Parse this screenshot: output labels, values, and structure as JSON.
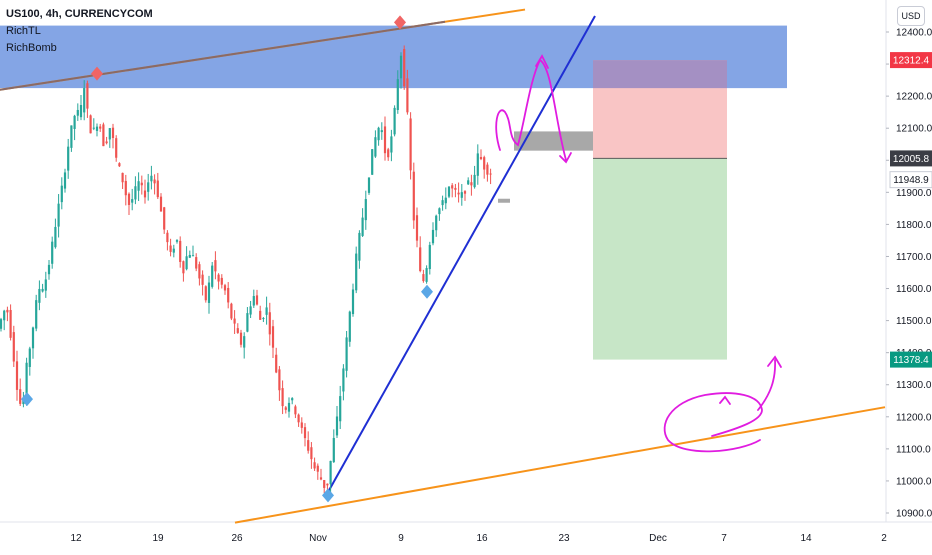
{
  "header": {
    "symbol": "US100, 4h, CURRENCYCOM",
    "indicators": [
      "RichTL",
      "RichBomb"
    ],
    "currency_button": "USD"
  },
  "price_badges": {
    "target_high": "12312.4",
    "current": "12005.8",
    "last": "11948.9",
    "target_low": "11378.4"
  },
  "colors": {
    "up_candle": "#26a69a",
    "down_candle": "#ef5350",
    "resistance_zone": "#6f95e0",
    "trendline_blue": "#1f2fd3",
    "channel_orange": "#f7931a",
    "drawing_magenta": "#e01ce0",
    "stop_zone": "#f9c5c5",
    "target_zone": "#c7e6c7",
    "badge_red": "#f23645",
    "badge_green": "#089981",
    "badge_dark": "#50535e"
  },
  "chart_data": {
    "type": "candlestick",
    "timeframe": "4h",
    "y_axis": {
      "ticks": [
        10900,
        11000,
        11100,
        11200,
        11300,
        11400,
        11500,
        11600,
        11700,
        11800,
        11900,
        12000,
        12100,
        12200,
        12300,
        12400
      ],
      "tick_labels": [
        "10900.0",
        "11000.0",
        "11100.0",
        "11200.0",
        "11300.0",
        "11400.0",
        "11500.0",
        "11600.0",
        "11700.0",
        "11800.0",
        "11900.0",
        "12000.0",
        "12100.0",
        "12200.0",
        "12300.0",
        "12400.0"
      ],
      "range": [
        10870,
        12470
      ]
    },
    "x_axis": {
      "tick_labels": [
        "12",
        "19",
        "26",
        "Nov",
        "9",
        "16",
        "23",
        "Dec",
        "7",
        "14",
        "2"
      ]
    },
    "price_path": [
      [
        0,
        11480
      ],
      [
        8,
        11550
      ],
      [
        14,
        11420
      ],
      [
        20,
        11260
      ],
      [
        24,
        11220
      ],
      [
        28,
        11350
      ],
      [
        34,
        11470
      ],
      [
        40,
        11600
      ],
      [
        46,
        11610
      ],
      [
        52,
        11700
      ],
      [
        58,
        11820
      ],
      [
        64,
        11920
      ],
      [
        70,
        12050
      ],
      [
        76,
        12140
      ],
      [
        82,
        12150
      ],
      [
        86,
        12240
      ],
      [
        90,
        12120
      ],
      [
        94,
        12080
      ],
      [
        100,
        12130
      ],
      [
        106,
        12040
      ],
      [
        112,
        12110
      ],
      [
        118,
        12000
      ],
      [
        124,
        11940
      ],
      [
        130,
        11860
      ],
      [
        134,
        11880
      ],
      [
        140,
        11930
      ],
      [
        146,
        11890
      ],
      [
        152,
        11960
      ],
      [
        158,
        11920
      ],
      [
        162,
        11850
      ],
      [
        166,
        11780
      ],
      [
        172,
        11700
      ],
      [
        178,
        11760
      ],
      [
        184,
        11650
      ],
      [
        190,
        11720
      ],
      [
        196,
        11690
      ],
      [
        202,
        11620
      ],
      [
        208,
        11560
      ],
      [
        214,
        11680
      ],
      [
        220,
        11620
      ],
      [
        226,
        11600
      ],
      [
        232,
        11520
      ],
      [
        238,
        11460
      ],
      [
        244,
        11420
      ],
      [
        250,
        11540
      ],
      [
        256,
        11580
      ],
      [
        262,
        11500
      ],
      [
        268,
        11540
      ],
      [
        274,
        11420
      ],
      [
        280,
        11300
      ],
      [
        286,
        11220
      ],
      [
        292,
        11260
      ],
      [
        298,
        11210
      ],
      [
        304,
        11150
      ],
      [
        310,
        11100
      ],
      [
        316,
        11040
      ],
      [
        322,
        11010
      ],
      [
        328,
        10970
      ],
      [
        334,
        11100
      ],
      [
        340,
        11220
      ],
      [
        346,
        11380
      ],
      [
        352,
        11540
      ],
      [
        358,
        11700
      ],
      [
        364,
        11820
      ],
      [
        370,
        11950
      ],
      [
        376,
        12060
      ],
      [
        382,
        12120
      ],
      [
        388,
        12000
      ],
      [
        394,
        12080
      ],
      [
        398,
        12210
      ],
      [
        402,
        12350
      ],
      [
        406,
        12240
      ],
      [
        410,
        12100
      ],
      [
        414,
        11850
      ],
      [
        418,
        11760
      ],
      [
        422,
        11640
      ],
      [
        426,
        11620
      ],
      [
        432,
        11760
      ],
      [
        438,
        11840
      ],
      [
        444,
        11860
      ],
      [
        450,
        11920
      ],
      [
        456,
        11900
      ],
      [
        462,
        11880
      ],
      [
        468,
        11920
      ],
      [
        474,
        11930
      ],
      [
        480,
        12020
      ],
      [
        486,
        11980
      ],
      [
        492,
        11960
      ],
      [
        496,
        12020
      ],
      [
        500,
        11950
      ]
    ],
    "series": [
      {
        "name": "RichTL",
        "type": "line",
        "points": [
          [
            0,
            12220
          ],
          [
            525,
            12470
          ]
        ]
      },
      {
        "type": "line",
        "points": [
          [
            328,
            10965
          ],
          [
            595,
            12450
          ]
        ]
      },
      {
        "type": "line",
        "points": [
          [
            235,
            10870
          ],
          [
            885,
            11230
          ]
        ]
      }
    ],
    "zones": [
      {
        "kind": "resistance",
        "y": [
          12225,
          12420
        ],
        "x": [
          0,
          787
        ]
      },
      {
        "kind": "stop",
        "y": [
          12005.8,
          12312.4
        ],
        "x": [
          593,
          727
        ]
      },
      {
        "kind": "target",
        "y": [
          11378.4,
          12005.8
        ],
        "x": [
          593,
          727
        ]
      },
      {
        "kind": "entry",
        "y": [
          12030,
          12090
        ],
        "x": [
          514,
          593
        ]
      }
    ],
    "markers": [
      {
        "type": "sell",
        "x": 97,
        "y": 12270
      },
      {
        "type": "sell",
        "x": 400,
        "y": 12430
      },
      {
        "type": "buy",
        "x": 27,
        "y": 11255
      },
      {
        "type": "buy",
        "x": 328,
        "y": 10955
      },
      {
        "type": "buy",
        "x": 427,
        "y": 11590
      }
    ]
  }
}
